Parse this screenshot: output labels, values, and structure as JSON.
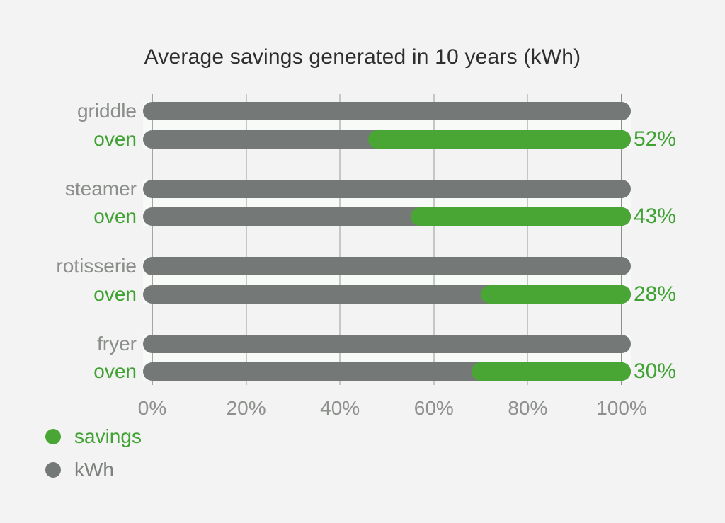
{
  "colors": {
    "green_bar": "#4aa634",
    "green_text": "#3fa233",
    "gray_bar": "#747876",
    "gray_label": "#8b8e8b",
    "tick_text": "#8d908d",
    "title_text": "#2e2e2e",
    "background": "#f2f3f2",
    "band": "#f8faf8",
    "gridline_mid": "#c5c7c5",
    "gridline_zero": "#a3a6a3",
    "gridline_hundred": "#8d908d",
    "legend_kwh_text": "#7d817e"
  },
  "chart_data": {
    "type": "bar",
    "orientation": "horizontal",
    "title": "Average savings generated in 10 years (kWh)",
    "xlabel": "",
    "ylabel": "",
    "xlim": [
      0,
      100
    ],
    "x_ticks": [
      "0%",
      "20%",
      "40%",
      "60%",
      "80%",
      "100%"
    ],
    "x_tick_values": [
      0,
      20,
      40,
      60,
      80,
      100
    ],
    "grid": true,
    "legend_position": "bottom-left",
    "legend": [
      {
        "label": "savings",
        "color": "#4aa634",
        "text_color": "#3fa233"
      },
      {
        "label": "kWh",
        "color": "#747876",
        "text_color": "#7d817e"
      }
    ],
    "bar_style": "rounded-pill, gray baseline bar 0-100% with green savings segment ending at 100%",
    "groups": [
      {
        "category": "griddle",
        "sub_category": "oven",
        "kwh_bar_pct": 100,
        "oven_bar_total_pct": 100,
        "savings_pct": 52,
        "savings_label": "52%"
      },
      {
        "category": "steamer",
        "sub_category": "oven",
        "kwh_bar_pct": 100,
        "oven_bar_total_pct": 100,
        "savings_pct": 43,
        "savings_label": "43%"
      },
      {
        "category": "rotisserie",
        "sub_category": "oven",
        "kwh_bar_pct": 100,
        "oven_bar_total_pct": 100,
        "savings_pct": 28,
        "savings_label": "28%"
      },
      {
        "category": "fryer",
        "sub_category": "oven",
        "kwh_bar_pct": 100,
        "oven_bar_total_pct": 100,
        "savings_pct": 30,
        "savings_label": "30%"
      }
    ]
  }
}
